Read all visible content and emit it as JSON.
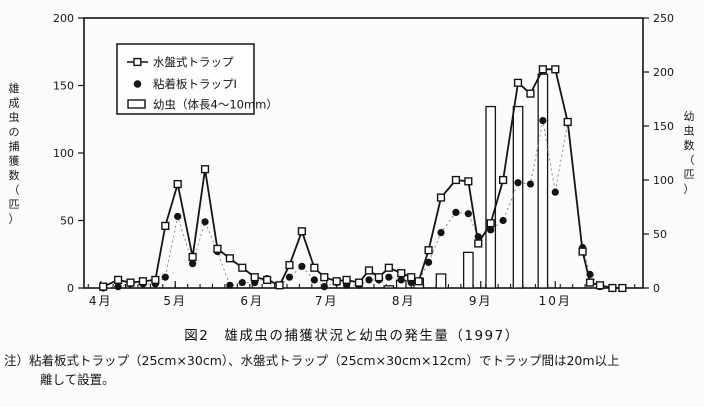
{
  "figure": {
    "title": "図2　雄成虫の捕獲状況と幼虫の発生量（1997）",
    "note_line1": "注）粘着板式トラップ（25cm×30cm）、水盤式トラップ（25cm×30cm×12cm）でトラップ間は20m以上",
    "note_line2": "離して設置。"
  },
  "chart_data": {
    "type": "line+bar",
    "title": "図2 雄成虫の捕獲状況と幼虫の発生量（1997）",
    "x_axis": {
      "months": [
        "4月",
        "5月",
        "6月",
        "7月",
        "8月",
        "9月",
        "10月"
      ],
      "minor_tick_interval_days": 5,
      "range": [
        "4/1",
        "10/31"
      ]
    },
    "y_left": {
      "label": "雄成虫の捕獲数（匹）",
      "min": 0,
      "max": 200,
      "ticks": [
        0,
        50,
        100,
        150,
        200
      ]
    },
    "y_right": {
      "label": "幼虫数（匹）",
      "min": 0,
      "max": 250,
      "ticks": [
        0,
        50,
        100,
        150,
        200,
        250
      ]
    },
    "legend_position": "top-left-inside",
    "series": [
      {
        "name": "水盤式トラップ",
        "type": "line",
        "axis": "left",
        "marker": "open-square",
        "line_style": "solid",
        "color": "#111111",
        "points": [
          [
            "4/2",
            1
          ],
          [
            "4/8",
            6
          ],
          [
            "4/13",
            4
          ],
          [
            "4/18",
            5
          ],
          [
            "4/23",
            6
          ],
          [
            "4/27",
            46
          ],
          [
            "5/2",
            77
          ],
          [
            "5/8",
            23
          ],
          [
            "5/13",
            88
          ],
          [
            "5/18",
            29
          ],
          [
            "5/23",
            22
          ],
          [
            "5/28",
            15
          ],
          [
            "6/2",
            8
          ],
          [
            "6/7",
            6
          ],
          [
            "6/12",
            2
          ],
          [
            "6/16",
            17
          ],
          [
            "6/21",
            42
          ],
          [
            "6/26",
            15
          ],
          [
            "6/30",
            8
          ],
          [
            "7/5",
            5
          ],
          [
            "7/9",
            6
          ],
          [
            "7/14",
            4
          ],
          [
            "7/18",
            13
          ],
          [
            "7/22",
            8
          ],
          [
            "7/26",
            15
          ],
          [
            "7/31",
            11
          ],
          [
            "8/4",
            8
          ],
          [
            "8/7",
            5
          ],
          [
            "8/11",
            28
          ],
          [
            "8/16",
            67
          ],
          [
            "8/22",
            80
          ],
          [
            "8/27",
            79
          ],
          [
            "8/31",
            33
          ],
          [
            "9/5",
            48
          ],
          [
            "9/10",
            80
          ],
          [
            "9/16",
            152
          ],
          [
            "9/21",
            144
          ],
          [
            "9/26",
            162
          ],
          [
            "10/1",
            162
          ],
          [
            "10/6",
            123
          ],
          [
            "10/12",
            27
          ],
          [
            "10/15",
            4
          ],
          [
            "10/19",
            2
          ],
          [
            "10/24",
            0
          ],
          [
            "10/28",
            0
          ]
        ]
      },
      {
        "name": "粘着板トラップⅠ",
        "type": "line",
        "axis": "left",
        "marker": "filled-circle",
        "line_style": "dotted",
        "color": "#333333",
        "points": [
          [
            "4/2",
            0
          ],
          [
            "4/8",
            1
          ],
          [
            "4/13",
            3
          ],
          [
            "4/18",
            3
          ],
          [
            "4/23",
            3
          ],
          [
            "4/27",
            8
          ],
          [
            "5/2",
            53
          ],
          [
            "5/8",
            18
          ],
          [
            "5/13",
            49
          ],
          [
            "5/18",
            27
          ],
          [
            "5/23",
            2
          ],
          [
            "5/28",
            4
          ],
          [
            "6/2",
            4
          ],
          [
            "6/7",
            7
          ],
          [
            "6/12",
            2
          ],
          [
            "6/16",
            8
          ],
          [
            "6/21",
            16
          ],
          [
            "6/26",
            6
          ],
          [
            "6/30",
            1
          ],
          [
            "7/5",
            4
          ],
          [
            "7/9",
            2
          ],
          [
            "7/14",
            2
          ],
          [
            "7/18",
            6
          ],
          [
            "7/22",
            6
          ],
          [
            "7/26",
            8
          ],
          [
            "7/31",
            6
          ],
          [
            "8/4",
            4
          ],
          [
            "8/7",
            5
          ],
          [
            "8/11",
            19
          ],
          [
            "8/16",
            41
          ],
          [
            "8/22",
            56
          ],
          [
            "8/27",
            55
          ],
          [
            "8/31",
            38
          ],
          [
            "9/5",
            43
          ],
          [
            "9/10",
            50
          ],
          [
            "9/16",
            78
          ],
          [
            "9/21",
            77
          ],
          [
            "9/26",
            124
          ],
          [
            "10/1",
            71
          ],
          [
            "10/6",
            123
          ],
          [
            "10/12",
            30
          ],
          [
            "10/15",
            10
          ],
          [
            "10/19",
            1
          ],
          [
            "10/24",
            0
          ],
          [
            "10/28",
            0
          ]
        ]
      },
      {
        "name": "幼虫（体長4～10mm）",
        "type": "bar",
        "axis": "right",
        "marker": "open-bar",
        "color": "#ffffff",
        "points": [
          [
            "7/26",
            2
          ],
          [
            "7/31",
            7
          ],
          [
            "8/7",
            9
          ],
          [
            "8/16",
            13
          ],
          [
            "8/27",
            33
          ],
          [
            "9/5",
            168
          ],
          [
            "9/16",
            168
          ],
          [
            "9/26",
            198
          ]
        ]
      }
    ]
  }
}
